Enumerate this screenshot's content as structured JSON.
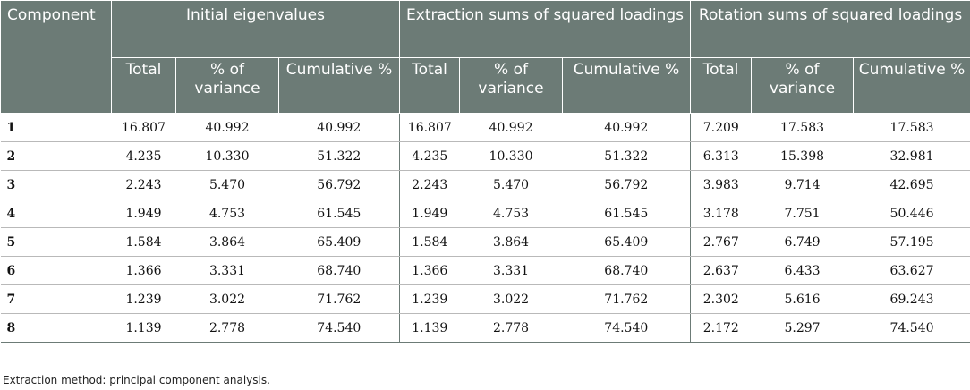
{
  "table": {
    "header": {
      "component": "Component",
      "groups": [
        "Initial eigenvalues",
        "Extraction sums of squared loadings",
        "Rotation sums of squared loadings"
      ],
      "subheaders": [
        "Total",
        "% of variance",
        "Cumulative %"
      ]
    },
    "rows": [
      {
        "label": "1",
        "values": [
          "16.807",
          "40.992",
          "40.992",
          "16.807",
          "40.992",
          "40.992",
          "7.209",
          "17.583",
          "17.583"
        ]
      },
      {
        "label": "2",
        "values": [
          "4.235",
          "10.330",
          "51.322",
          "4.235",
          "10.330",
          "51.322",
          "6.313",
          "15.398",
          "32.981"
        ]
      },
      {
        "label": "3",
        "values": [
          "2.243",
          "5.470",
          "56.792",
          "2.243",
          "5.470",
          "56.792",
          "3.983",
          "9.714",
          "42.695"
        ]
      },
      {
        "label": "4",
        "values": [
          "1.949",
          "4.753",
          "61.545",
          "1.949",
          "4.753",
          "61.545",
          "3.178",
          "7.751",
          "50.446"
        ]
      },
      {
        "label": "5",
        "values": [
          "1.584",
          "3.864",
          "65.409",
          "1.584",
          "3.864",
          "65.409",
          "2.767",
          "6.749",
          "57.195"
        ]
      },
      {
        "label": "6",
        "values": [
          "1.366",
          "3.331",
          "68.740",
          "1.366",
          "3.331",
          "68.740",
          "2.637",
          "6.433",
          "63.627"
        ]
      },
      {
        "label": "7",
        "values": [
          "1.239",
          "3.022",
          "71.762",
          "1.239",
          "3.022",
          "71.762",
          "2.302",
          "5.616",
          "69.243"
        ]
      },
      {
        "label": "8",
        "values": [
          "1.139",
          "2.778",
          "74.540",
          "1.139",
          "2.778",
          "74.540",
          "2.172",
          "5.297",
          "74.540"
        ]
      }
    ]
  },
  "footnote": "Extraction method: principal component analysis."
}
